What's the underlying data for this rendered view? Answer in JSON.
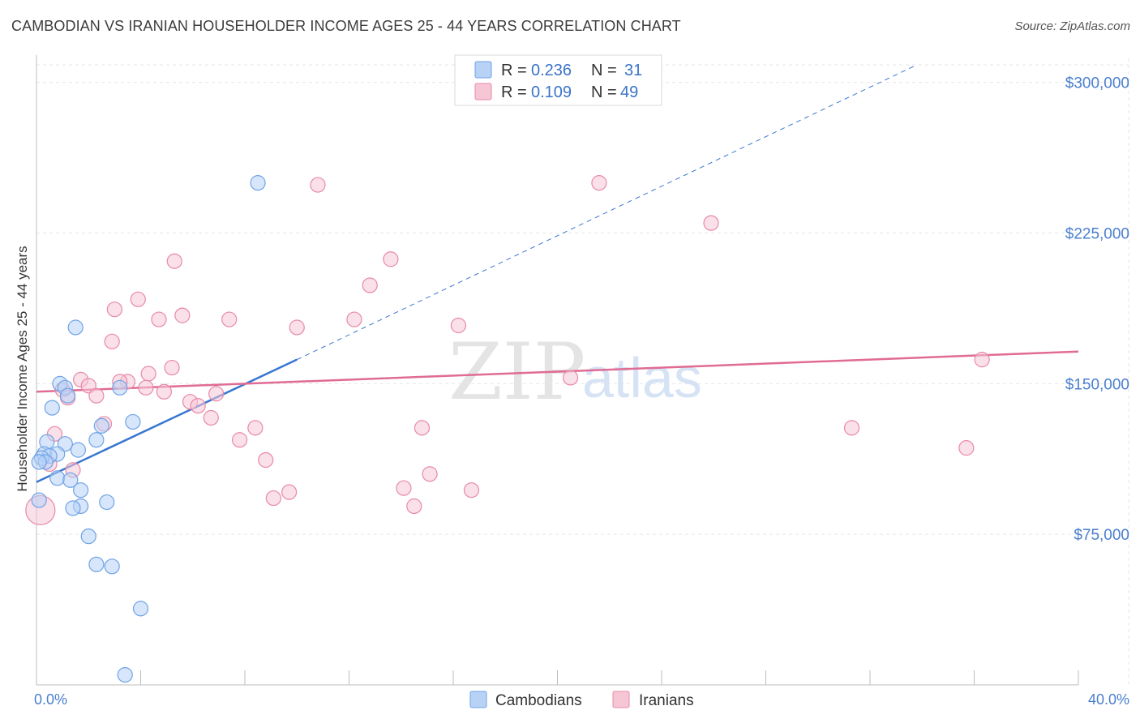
{
  "title": "CAMBODIAN VS IRANIAN HOUSEHOLDER INCOME AGES 25 - 44 YEARS CORRELATION CHART",
  "source": "Source: ZipAtlas.com",
  "watermark": {
    "zip": "ZIP",
    "atlas": "atlas"
  },
  "colors": {
    "cambodian": "#6fa3e6",
    "cambodian_fill": "#b7d2f5",
    "iranian": "#e889a7",
    "iranian_fill": "#f6c6d5",
    "blue_line": "#3a77d0",
    "pink_line": "#e06b93",
    "axis_text": "#4a7fcf"
  },
  "legend": {
    "rows": [
      {
        "r_label": "R = ",
        "r_value": "0.236",
        "n_label": "N = ",
        "n_value": "31",
        "series": "cambodian"
      },
      {
        "r_label": "R = ",
        "r_value": "0.109",
        "n_label": "N = ",
        "n_value": "49",
        "series": "iranian"
      }
    ]
  },
  "bottom_legend": [
    "Cambodians",
    "Iranians"
  ],
  "chart_data": {
    "type": "scatter",
    "title": "CAMBODIAN VS IRANIAN HOUSEHOLDER INCOME AGES 25 - 44 YEARS CORRELATION CHART",
    "xlabel": "",
    "ylabel": "Householder Income Ages 25 - 44 years",
    "xlim": [
      0,
      40
    ],
    "ylim": [
      0,
      312000
    ],
    "x_tick_labels": [
      "0.0%",
      "40.0%"
    ],
    "y_ticks": [
      75000,
      150000,
      225000,
      300000
    ],
    "y_tick_labels": [
      "$75,000",
      "$150,000",
      "$225,000",
      "$300,000"
    ],
    "grid": true,
    "legend_position": "top-center",
    "series": [
      {
        "name": "Cambodians",
        "color": "#6fa3e6",
        "points": [
          [
            8.5,
            250000
          ],
          [
            1.5,
            178000
          ],
          [
            0.9,
            150000
          ],
          [
            1.1,
            148000
          ],
          [
            3.2,
            148000
          ],
          [
            1.2,
            144000
          ],
          [
            0.6,
            138000
          ],
          [
            3.7,
            131000
          ],
          [
            2.5,
            129000
          ],
          [
            2.3,
            122000
          ],
          [
            0.4,
            121000
          ],
          [
            1.1,
            120000
          ],
          [
            1.6,
            117000
          ],
          [
            0.3,
            115000
          ],
          [
            0.8,
            115000
          ],
          [
            0.5,
            114000
          ],
          [
            0.2,
            113000
          ],
          [
            0.35,
            111000
          ],
          [
            0.1,
            111000
          ],
          [
            0.8,
            103000
          ],
          [
            1.3,
            102000
          ],
          [
            1.7,
            97000
          ],
          [
            0.1,
            92000
          ],
          [
            2.7,
            91000
          ],
          [
            1.7,
            89000
          ],
          [
            1.4,
            88000
          ],
          [
            2.0,
            74000
          ],
          [
            2.3,
            60000
          ],
          [
            2.9,
            59000
          ],
          [
            4.0,
            38000
          ],
          [
            3.4,
            5000
          ]
        ],
        "trend": {
          "x": [
            0.0,
            10.0
          ],
          "y": [
            101000,
            162000
          ],
          "dashed_extension": {
            "x": [
              10.0,
              40.0
            ],
            "y": [
              162000,
              347000
            ]
          }
        }
      },
      {
        "name": "Iranians",
        "color": "#e889a7",
        "points": [
          [
            10.8,
            249000
          ],
          [
            21.6,
            250000
          ],
          [
            25.9,
            230000
          ],
          [
            5.3,
            211000
          ],
          [
            13.6,
            212000
          ],
          [
            12.8,
            199000
          ],
          [
            3.9,
            192000
          ],
          [
            3.0,
            187000
          ],
          [
            5.6,
            184000
          ],
          [
            4.7,
            182000
          ],
          [
            7.4,
            182000
          ],
          [
            12.2,
            182000
          ],
          [
            16.2,
            179000
          ],
          [
            10.0,
            178000
          ],
          [
            2.9,
            171000
          ],
          [
            36.3,
            162000
          ],
          [
            5.2,
            158000
          ],
          [
            4.3,
            155000
          ],
          [
            20.5,
            153000
          ],
          [
            1.7,
            152000
          ],
          [
            3.5,
            151000
          ],
          [
            3.2,
            151000
          ],
          [
            2.0,
            149000
          ],
          [
            4.2,
            148000
          ],
          [
            1.0,
            147000
          ],
          [
            4.9,
            146000
          ],
          [
            6.9,
            145000
          ],
          [
            2.3,
            144000
          ],
          [
            1.2,
            143000
          ],
          [
            5.9,
            141000
          ],
          [
            6.2,
            139000
          ],
          [
            6.7,
            133000
          ],
          [
            2.6,
            130000
          ],
          [
            8.4,
            128000
          ],
          [
            14.8,
            128000
          ],
          [
            31.3,
            128000
          ],
          [
            0.7,
            125000
          ],
          [
            7.8,
            122000
          ],
          [
            35.7,
            118000
          ],
          [
            8.8,
            112000
          ],
          [
            0.5,
            110000
          ],
          [
            1.4,
            107000
          ],
          [
            15.1,
            105000
          ],
          [
            14.1,
            98000
          ],
          [
            16.7,
            97000
          ],
          [
            9.7,
            96000
          ],
          [
            9.1,
            93000
          ],
          [
            14.5,
            89000
          ],
          [
            0.15,
            87000
          ]
        ],
        "trend": {
          "x": [
            0.0,
            40.0
          ],
          "y": [
            146000,
            166000
          ]
        }
      }
    ]
  }
}
